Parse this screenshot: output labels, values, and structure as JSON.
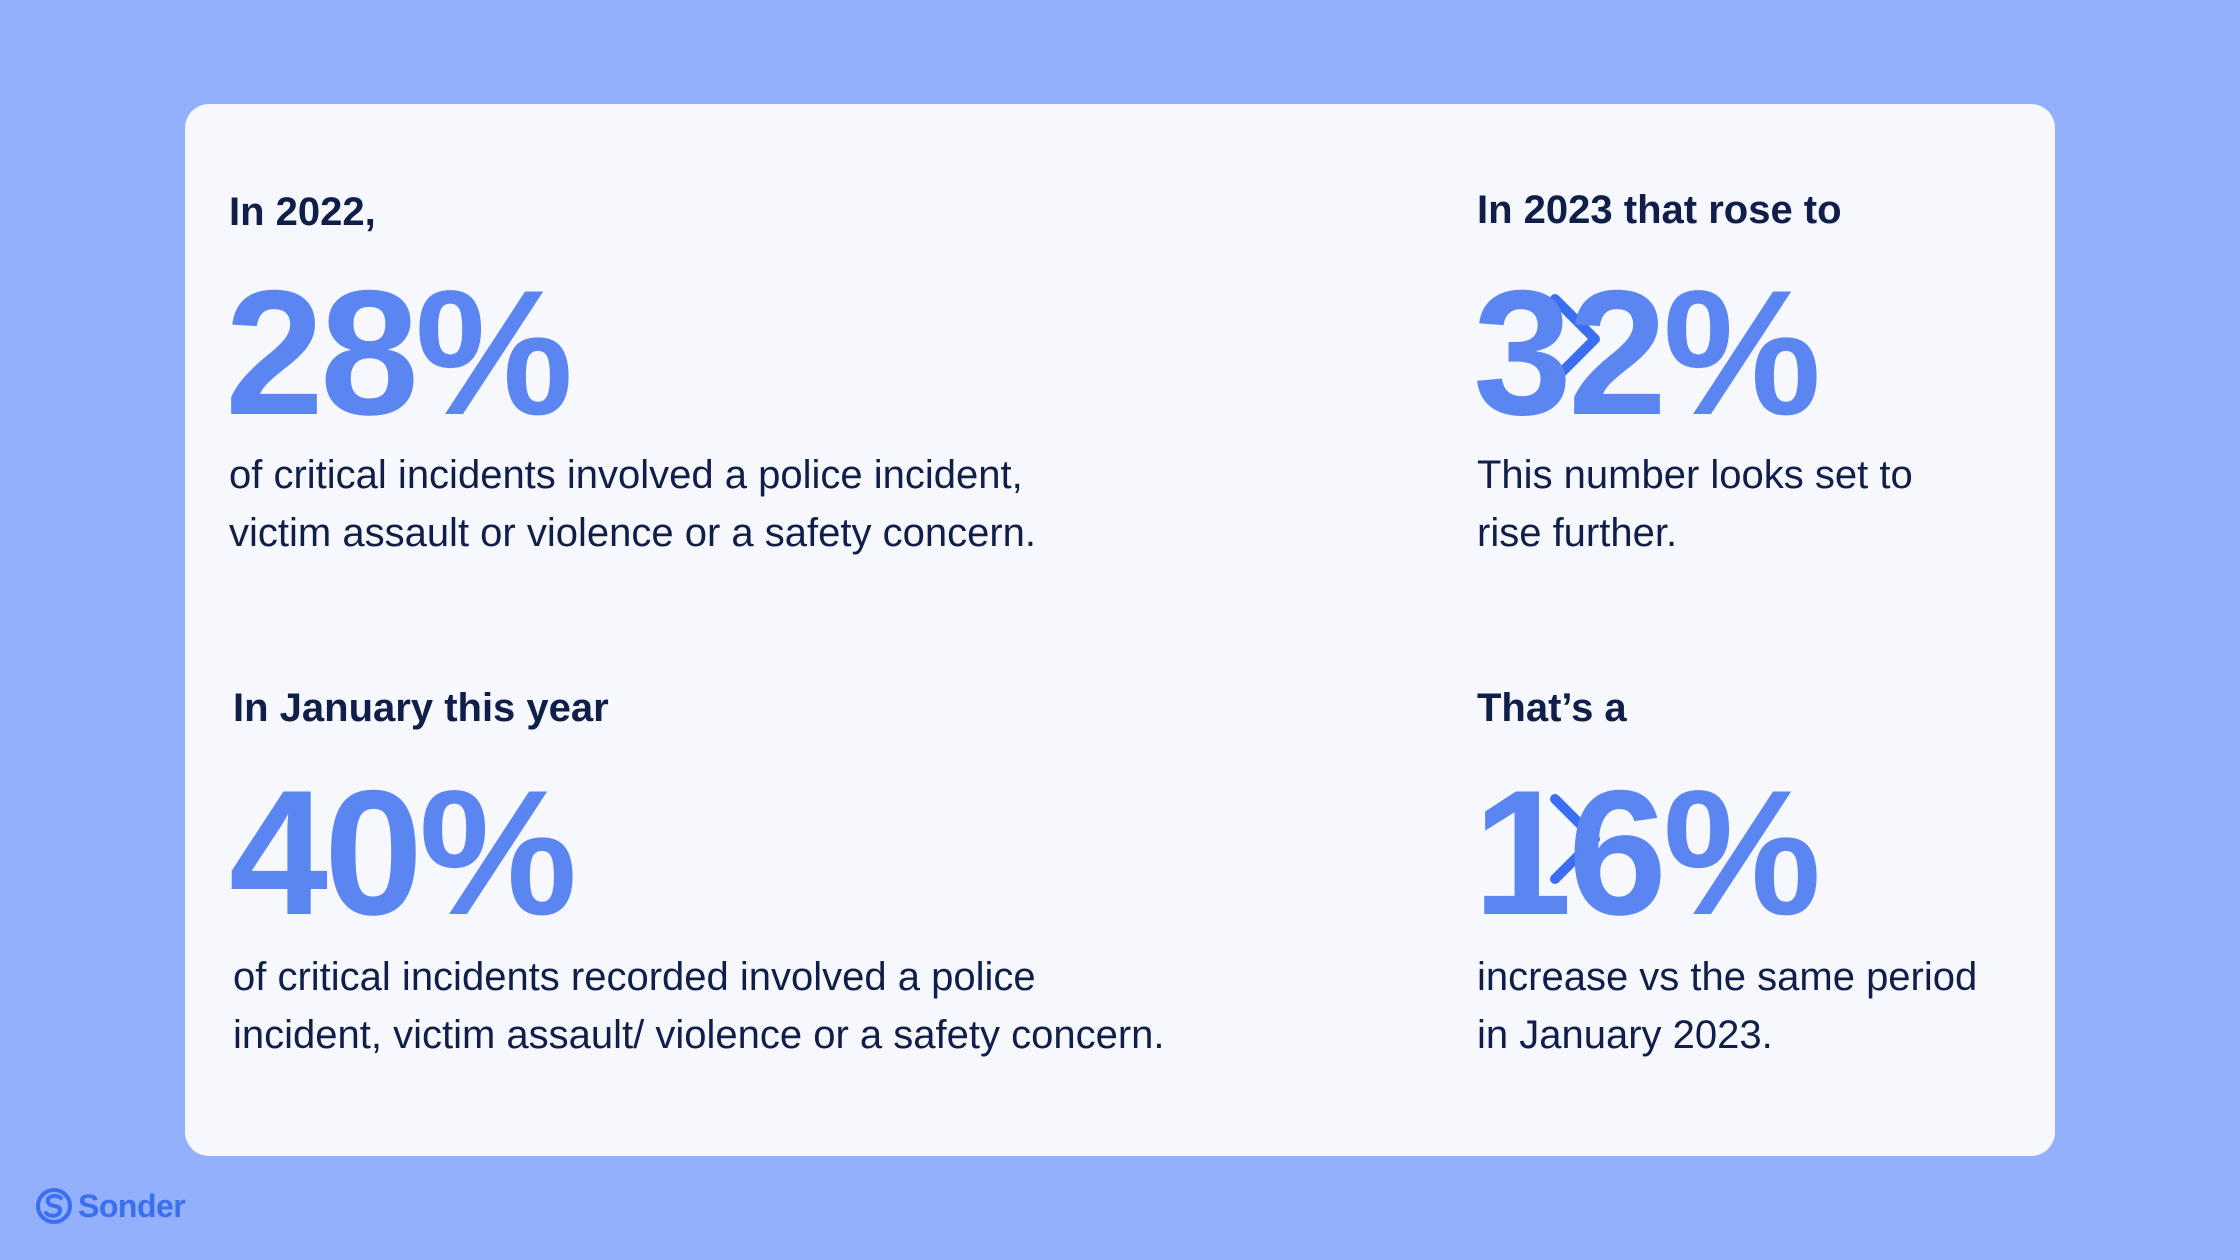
{
  "card": {
    "top_left": {
      "heading": "In 2022,",
      "stat": "28%",
      "description_line1": "of critical incidents involved a police incident,",
      "description_line2": "victim assault or violence or a safety concern."
    },
    "top_right": {
      "heading": "In 2023 that rose to",
      "stat": "32%",
      "description_line1": "This number looks set to",
      "description_line2": "rise further."
    },
    "bottom_left": {
      "heading": "In January this year",
      "stat": "40%",
      "description_line1": "of critical incidents recorded involved a police",
      "description_line2": "incident, victim assault/ violence or a safety concern."
    },
    "bottom_right": {
      "heading": "That’s a",
      "stat": "16%",
      "description_line1": "increase vs the same period",
      "description_line2": "in January 2023."
    }
  },
  "brand": {
    "name": "Sonder",
    "logo_icon": "sonder-s-logo-icon"
  },
  "colors": {
    "background": "#92b0fb",
    "card": "#f7f8fe",
    "stat": "#5b86f1",
    "text": "#0f1f4a",
    "arrow": "#3b6ef0"
  }
}
